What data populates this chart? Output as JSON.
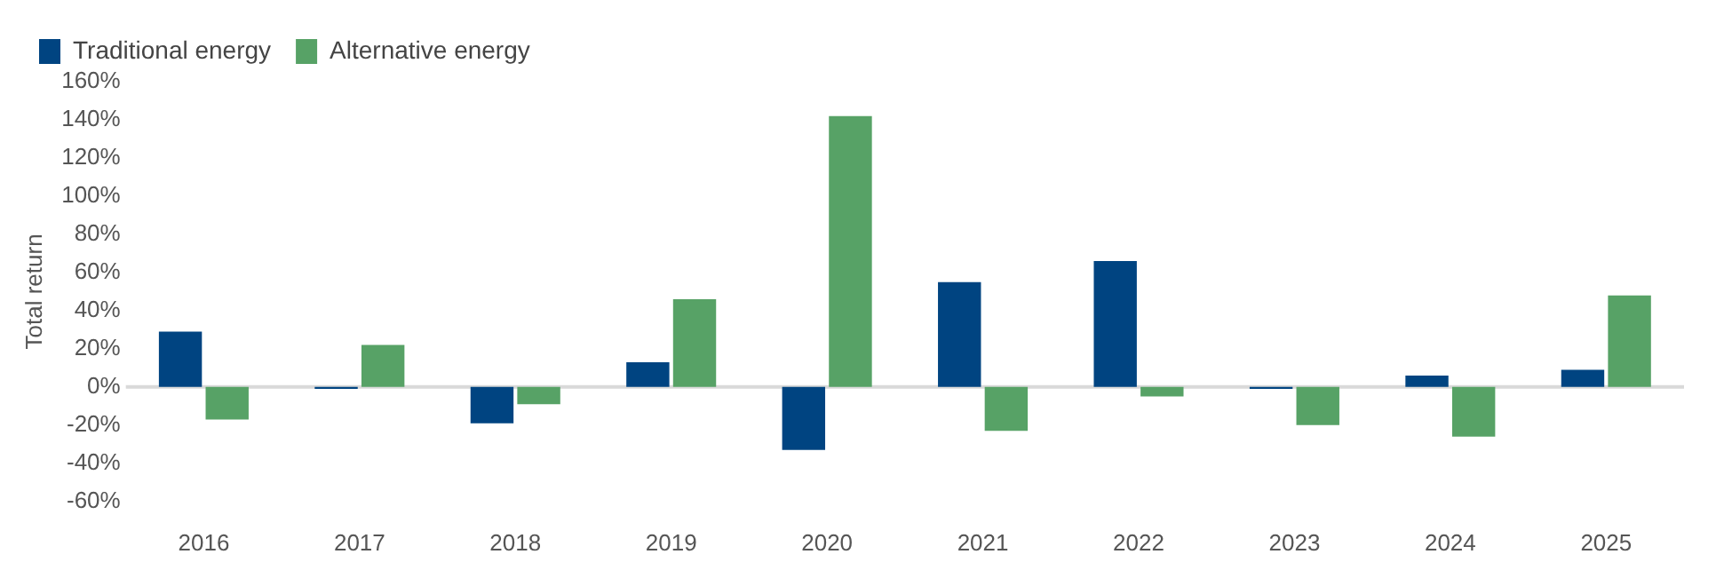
{
  "chart_data": {
    "type": "bar",
    "ylabel": "Total return",
    "categories": [
      "2016",
      "2017",
      "2018",
      "2019",
      "2020",
      "2021",
      "2022",
      "2023",
      "2024",
      "2025"
    ],
    "series": [
      {
        "name": "Traditional energy",
        "color": "#004481",
        "values": [
          29,
          -1,
          -19,
          13,
          -33,
          55,
          66,
          -1,
          6,
          9
        ]
      },
      {
        "name": "Alternative energy",
        "color": "#57a266",
        "values": [
          -17,
          22,
          -9,
          46,
          142,
          -23,
          -5,
          -20,
          -26,
          48
        ]
      }
    ],
    "ylim": [
      -60,
      160
    ],
    "yticks": [
      {
        "value": -60,
        "label": "-60%"
      },
      {
        "value": -40,
        "label": "-40%"
      },
      {
        "value": -20,
        "label": "-20%"
      },
      {
        "value": 0,
        "label": "0%"
      },
      {
        "value": 20,
        "label": "20%"
      },
      {
        "value": 40,
        "label": "40%"
      },
      {
        "value": 60,
        "label": "60%"
      },
      {
        "value": 80,
        "label": "80%"
      },
      {
        "value": 100,
        "label": "100%"
      },
      {
        "value": 120,
        "label": "120%"
      },
      {
        "value": 140,
        "label": "140%"
      },
      {
        "value": 160,
        "label": "160%"
      }
    ],
    "ref_lines": [
      {
        "axis": "y",
        "value": 0,
        "color": "#d9d9d9"
      }
    ],
    "grid": false,
    "legend": "top left"
  }
}
